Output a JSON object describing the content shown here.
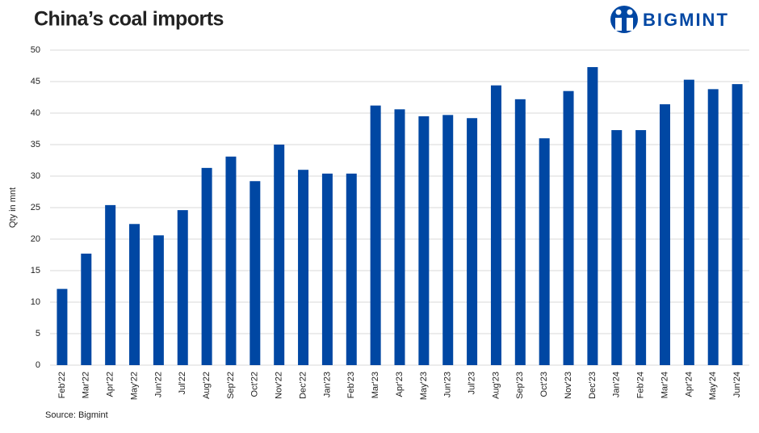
{
  "chart_data": {
    "type": "bar",
    "title": "China’s coal imports",
    "logo": "BIGMINT",
    "y_label": "Qty in mnt",
    "source": "Source: Bigmint",
    "categories": [
      "Feb'22",
      "Mar'22",
      "Apr'22",
      "May'22",
      "Jun'22",
      "Jul'22",
      "Aug'22",
      "Sep'22",
      "Oct'22",
      "Nov'22",
      "Dec'22",
      "Jan'23",
      "Feb'23",
      "Mar'23",
      "Apr'23",
      "May'23",
      "Jun'23",
      "Jul'23",
      "Aug'23",
      "Sep'23",
      "Oct'23",
      "Nov'23",
      "Dec'23",
      "Jan'24",
      "Feb'24",
      "Mar'24",
      "Apr'24",
      "May'24",
      "Jun'24"
    ],
    "values": [
      12.1,
      17.7,
      25.4,
      22.4,
      20.6,
      24.6,
      31.3,
      33.1,
      29.2,
      35.0,
      31.0,
      30.4,
      30.4,
      41.2,
      40.6,
      39.5,
      39.7,
      39.2,
      44.4,
      42.2,
      36.0,
      43.5,
      47.3,
      37.3,
      37.3,
      41.4,
      45.3,
      43.8,
      44.6
    ],
    "color": "#0047a3",
    "ylim": [
      0,
      50
    ],
    "yticks": [
      0,
      5,
      10,
      15,
      20,
      25,
      30,
      35,
      40,
      45,
      50
    ],
    "grid": true
  }
}
